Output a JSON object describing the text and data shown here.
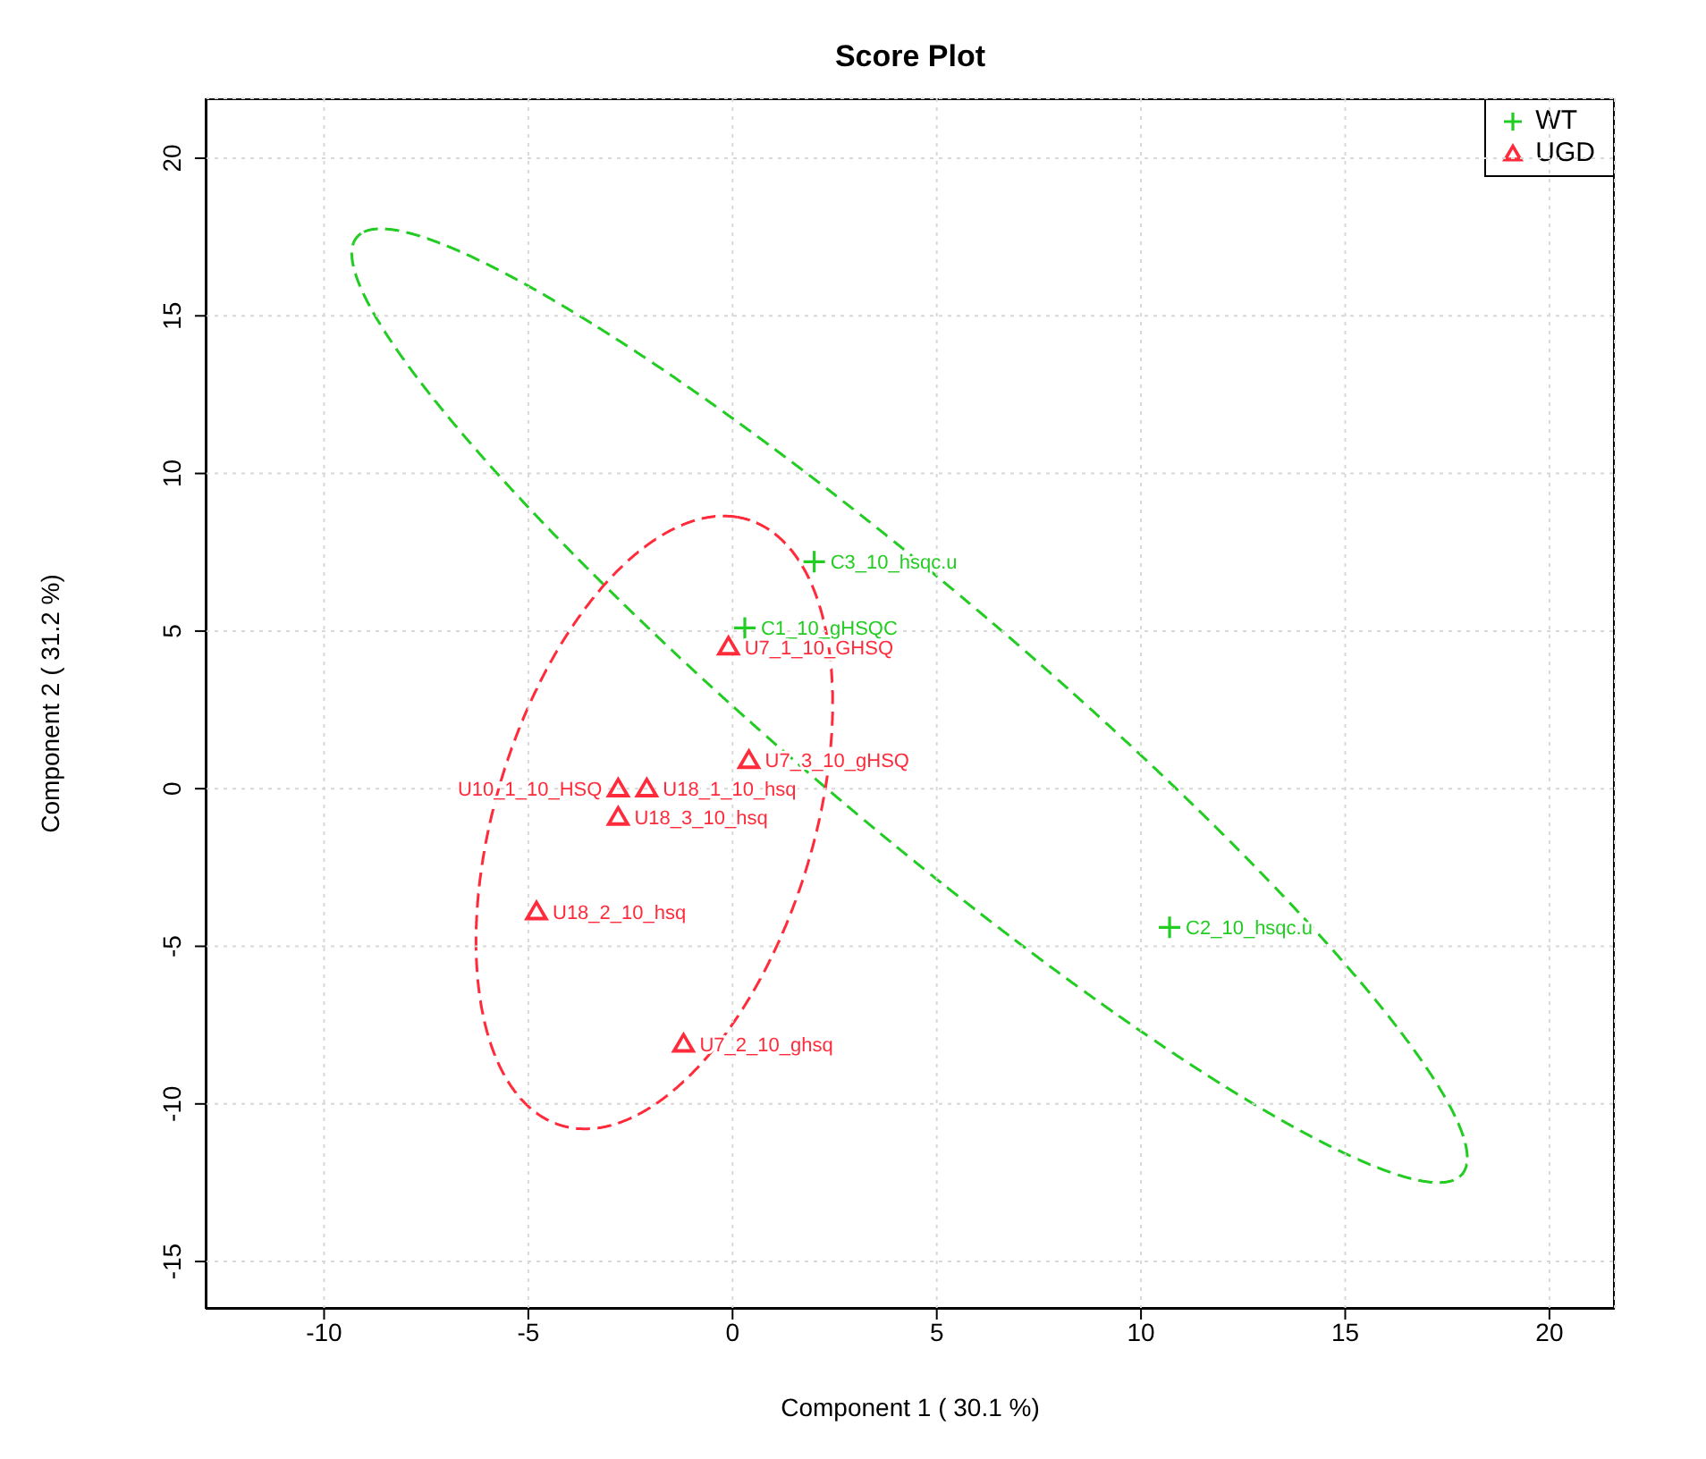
{
  "chart_data": {
    "type": "scatter",
    "title": "Score Plot",
    "xlabel": "Component 1 ( 30.1 %)",
    "ylabel": "Component 2 ( 31.2 %)",
    "xlim": [
      -12.9,
      21.6
    ],
    "ylim": [
      -16.5,
      21.9
    ],
    "xticks": [
      -10,
      -5,
      0,
      5,
      10,
      15,
      20
    ],
    "yticks": [
      -15,
      -10,
      -5,
      0,
      5,
      10,
      15,
      20
    ],
    "grid": true,
    "legend": "top right",
    "series": [
      {
        "name": "WT",
        "color": "#22cc22",
        "marker": "cross",
        "x": [
          2.0,
          0.3,
          10.7
        ],
        "values": [
          7.2,
          5.1,
          -4.4
        ]
      },
      {
        "name": "UGD",
        "color": "#ff2a3a",
        "marker": "triangle",
        "x": [
          -0.1,
          0.4,
          -2.8,
          -2.1,
          -2.8,
          -4.8,
          -1.2
        ],
        "values": [
          4.5,
          0.9,
          0.0,
          0.0,
          -0.9,
          -3.9,
          -8.1
        ]
      }
    ],
    "annotations": [
      {
        "text": "C3_10_hsqc.u",
        "x": 2.0,
        "y": 7.2
      },
      {
        "text": "C1_10_gHSQC",
        "x": 0.3,
        "y": 5.1
      },
      {
        "text": "C2_10_hsqc.u",
        "x": 10.7,
        "y": -4.4
      },
      {
        "text": "U7_1_10_GHSQ",
        "x": -0.1,
        "y": 4.5
      },
      {
        "text": "U7_3_10_gHSQ",
        "x": 0.4,
        "y": 0.9
      },
      {
        "text": "U10_1_10_HSQ",
        "x": -2.8,
        "y": 0.0
      },
      {
        "text": "U18_1_10_hsq",
        "x": -2.1,
        "y": 0.0
      },
      {
        "text": "U18_3_10_hsq",
        "x": -2.8,
        "y": -0.9
      },
      {
        "text": "U18_2_10_hsq",
        "x": -4.8,
        "y": -3.9
      },
      {
        "text": "U7_2_10_ghsq",
        "x": -1.2,
        "y": -8.1
      }
    ]
  }
}
